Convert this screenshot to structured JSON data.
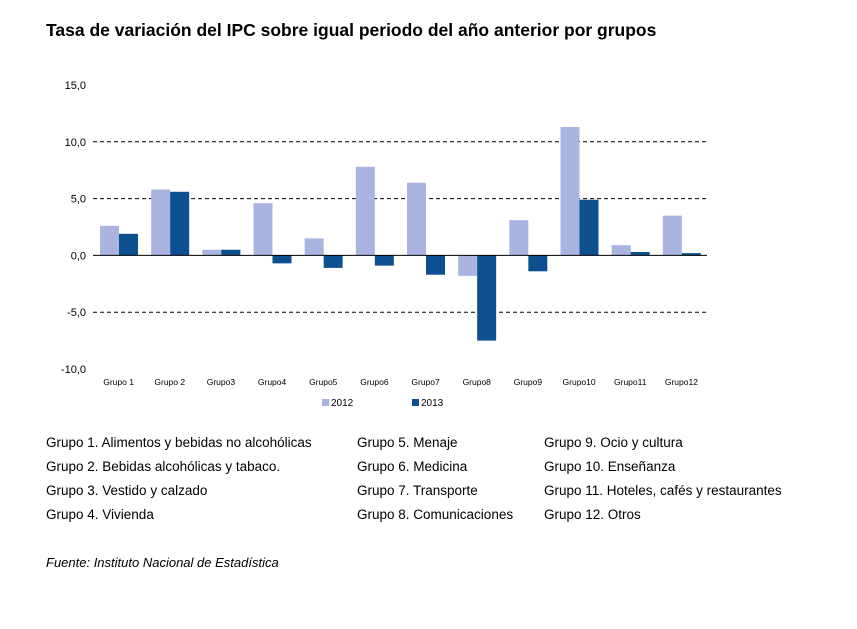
{
  "title": "Tasa de variación del IPC sobre igual periodo del año anterior por grupos",
  "chart_data": {
    "type": "bar",
    "categories": [
      "Grupo 1",
      "Grupo 2",
      "Grupo3",
      "Grupo4",
      "Grupo5",
      "Grupo6",
      "Grupo7",
      "Grupo8",
      "Grupo9",
      "Grupo10",
      "Grupo11",
      "Grupo12"
    ],
    "series": [
      {
        "name": "2012",
        "color": "#a9b4e0",
        "values": [
          2.6,
          5.8,
          0.5,
          4.6,
          1.5,
          7.8,
          6.4,
          -1.8,
          3.1,
          11.3,
          0.9,
          3.5
        ]
      },
      {
        "name": "2013",
        "color": "#0e4f8f",
        "values": [
          1.9,
          5.6,
          0.5,
          -0.7,
          -1.1,
          -0.9,
          -1.7,
          -7.5,
          -1.4,
          4.9,
          0.3,
          0.2
        ]
      }
    ],
    "ylim": [
      -10,
      15
    ],
    "yticks": [
      "15,0",
      "10,0",
      "5,0",
      "0,0",
      "-5,0",
      "-10,0"
    ],
    "ytick_values": [
      15,
      10,
      5,
      0,
      -5,
      -10
    ],
    "grid": "dashed horizontal",
    "legend": "bottom"
  },
  "notes": {
    "col1": [
      "Grupo 1. Alimentos y bebidas no alcohólicas",
      "Grupo 2. Bebidas alcohólicas y  tabaco.",
      "Grupo 3. Vestido y calzado",
      "Grupo 4. Vivienda"
    ],
    "col2": [
      "Grupo 5. Menaje",
      "Grupo 6. Medicina",
      "Grupo 7. Transporte",
      "Grupo 8. Comunicaciones"
    ],
    "col3": [
      "Grupo 9. Ocio y cultura",
      "Grupo 10. Enseñanza",
      "Grupo 11. Hoteles, cafés y restaurantes",
      "Grupo 12. Otros"
    ]
  },
  "source": "Fuente: Instituto Nacional de Estadística"
}
